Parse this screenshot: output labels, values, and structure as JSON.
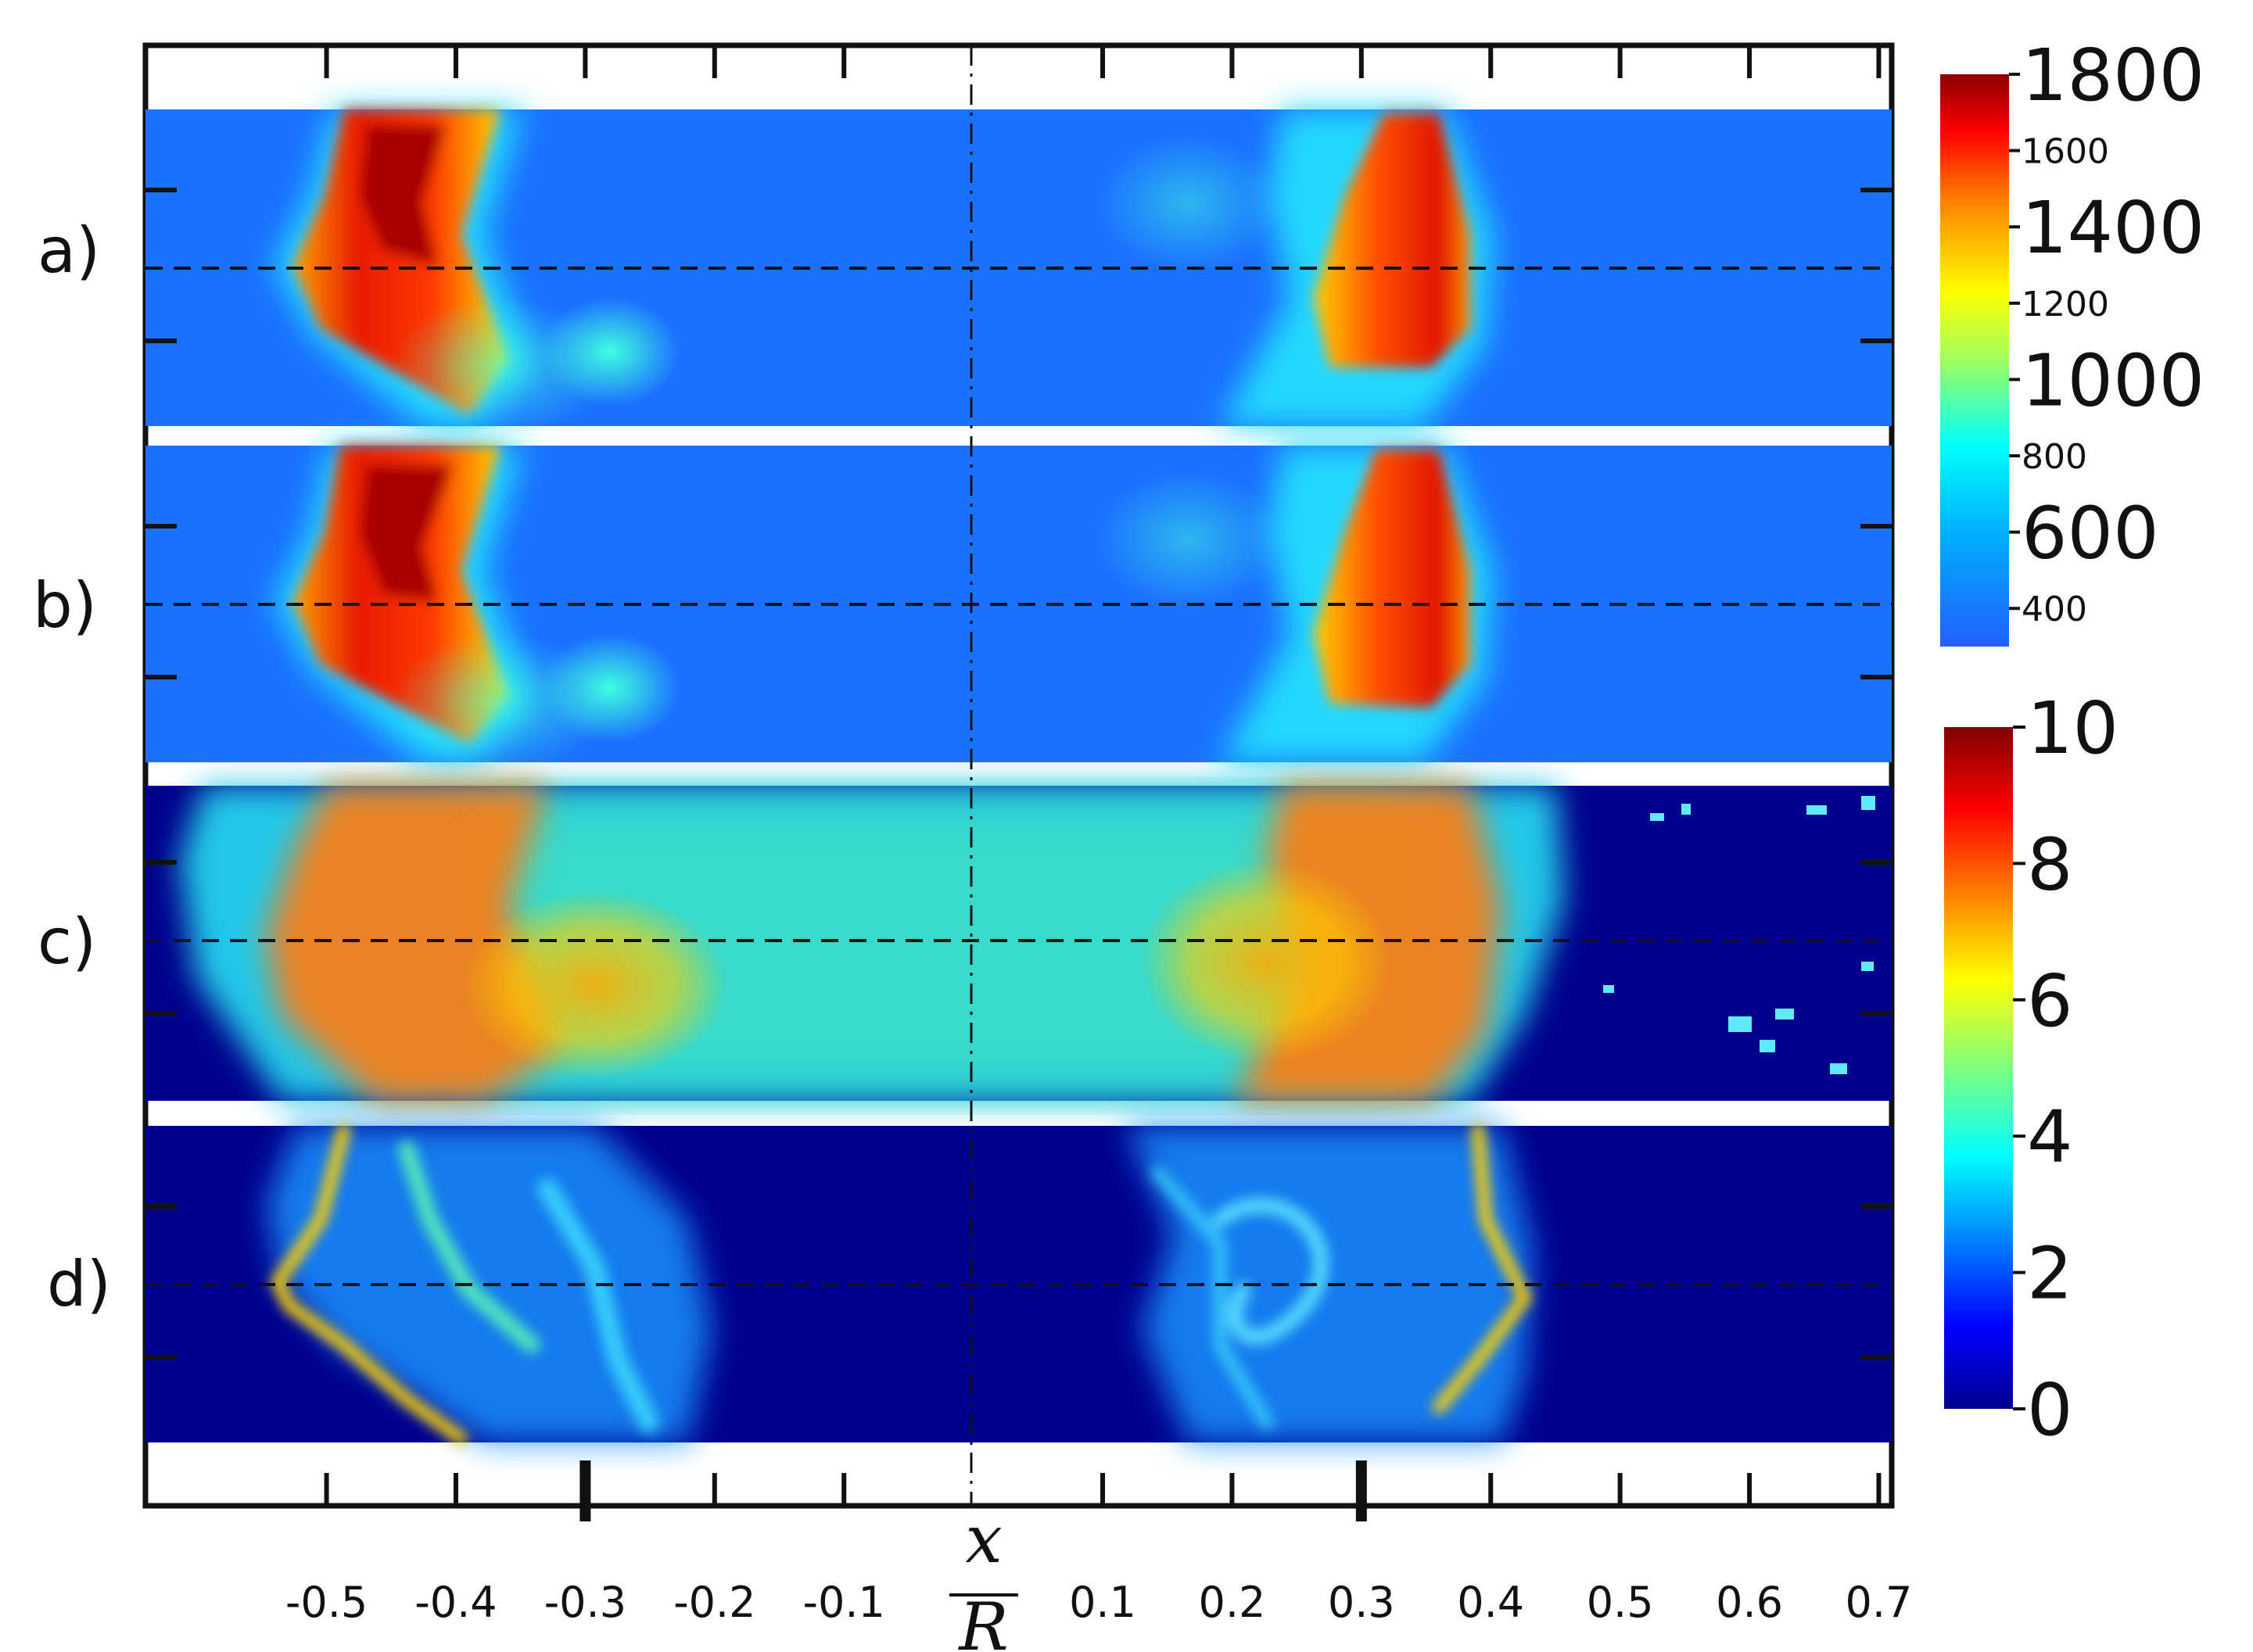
{
  "chart_data": {
    "type": "heatmap",
    "panels": [
      {
        "label": "a)",
        "colorbar": "top"
      },
      {
        "label": "b)",
        "colorbar": "top"
      },
      {
        "label": "c)",
        "colorbar": "bottom"
      },
      {
        "label": "d)",
        "colorbar": "bottom"
      }
    ],
    "x_axis": {
      "label_num": "x",
      "label_den": "R",
      "ticks": [
        -0.5,
        -0.4,
        -0.3,
        -0.2,
        -0.1,
        0.1,
        0.2,
        0.3,
        0.4,
        0.5,
        0.6,
        0.7
      ],
      "tick_labels": [
        "-0.5",
        "-0.4",
        "-0.3",
        "-0.2",
        "-0.1",
        "0.1",
        "0.2",
        "0.3",
        "0.4",
        "0.5",
        "0.6",
        "0.7"
      ],
      "range": [
        -0.64,
        0.71
      ],
      "emphasized_ticks": [
        -0.3,
        0.3
      ]
    },
    "colorbar_top": {
      "range": [
        300,
        1800
      ],
      "major_labels": [
        {
          "value": 1800,
          "text": "1800"
        },
        {
          "value": 1400,
          "text": "1400"
        },
        {
          "value": 1000,
          "text": "1000"
        },
        {
          "value": 600,
          "text": "600"
        }
      ],
      "minor_labels": [
        {
          "value": 1600,
          "text": "1600"
        },
        {
          "value": 1200,
          "text": "1200"
        },
        {
          "value": 800,
          "text": "800"
        },
        {
          "value": 400,
          "text": "400"
        }
      ]
    },
    "colorbar_bottom": {
      "range": [
        0,
        10
      ],
      "labels": [
        {
          "value": 10,
          "text": "10"
        },
        {
          "value": 8,
          "text": "8"
        },
        {
          "value": 6,
          "text": "6"
        },
        {
          "value": 4,
          "text": "4"
        },
        {
          "value": 2,
          "text": "2"
        },
        {
          "value": 0,
          "text": "0"
        }
      ]
    },
    "colormap": "jet",
    "grid": false
  }
}
